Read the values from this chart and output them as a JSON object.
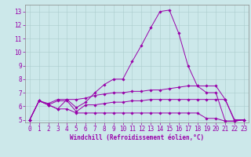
{
  "xlabel": "Windchill (Refroidissement éolien,°C)",
  "xlim": [
    -0.5,
    23.5
  ],
  "ylim": [
    4.8,
    13.5
  ],
  "xticks": [
    0,
    1,
    2,
    3,
    4,
    5,
    6,
    7,
    8,
    9,
    10,
    11,
    12,
    13,
    14,
    15,
    16,
    17,
    18,
    19,
    20,
    21,
    22,
    23
  ],
  "yticks": [
    5,
    6,
    7,
    8,
    9,
    10,
    11,
    12,
    13
  ],
  "bg_color": "#cce8ea",
  "line_color": "#9900aa",
  "grid_color": "#aacccc",
  "line1_y": [
    5.0,
    6.4,
    6.1,
    5.8,
    6.5,
    5.9,
    6.3,
    7.0,
    7.6,
    8.0,
    8.0,
    9.3,
    10.5,
    11.8,
    13.0,
    13.1,
    11.4,
    9.0,
    7.5,
    7.0,
    7.0,
    4.9,
    4.9,
    5.0
  ],
  "line2_y": [
    5.0,
    6.4,
    6.2,
    6.5,
    6.5,
    6.5,
    6.6,
    6.8,
    6.9,
    7.0,
    7.0,
    7.1,
    7.1,
    7.2,
    7.2,
    7.3,
    7.4,
    7.5,
    7.5,
    7.5,
    7.5,
    6.5,
    5.0,
    5.0
  ],
  "line3_y": [
    5.0,
    6.4,
    6.1,
    6.4,
    6.4,
    5.6,
    6.1,
    6.1,
    6.2,
    6.3,
    6.3,
    6.4,
    6.4,
    6.5,
    6.5,
    6.5,
    6.5,
    6.5,
    6.5,
    6.5,
    6.5,
    6.5,
    4.9,
    5.0
  ],
  "line4_y": [
    5.0,
    6.4,
    6.1,
    5.8,
    5.8,
    5.5,
    5.5,
    5.5,
    5.5,
    5.5,
    5.5,
    5.5,
    5.5,
    5.5,
    5.5,
    5.5,
    5.5,
    5.5,
    5.5,
    5.1,
    5.1,
    4.9,
    4.9,
    5.0
  ],
  "marker": "D",
  "markersize": 1.8,
  "linewidth": 0.7,
  "tick_fontsize": 5.5,
  "xlabel_fontsize": 5.5
}
